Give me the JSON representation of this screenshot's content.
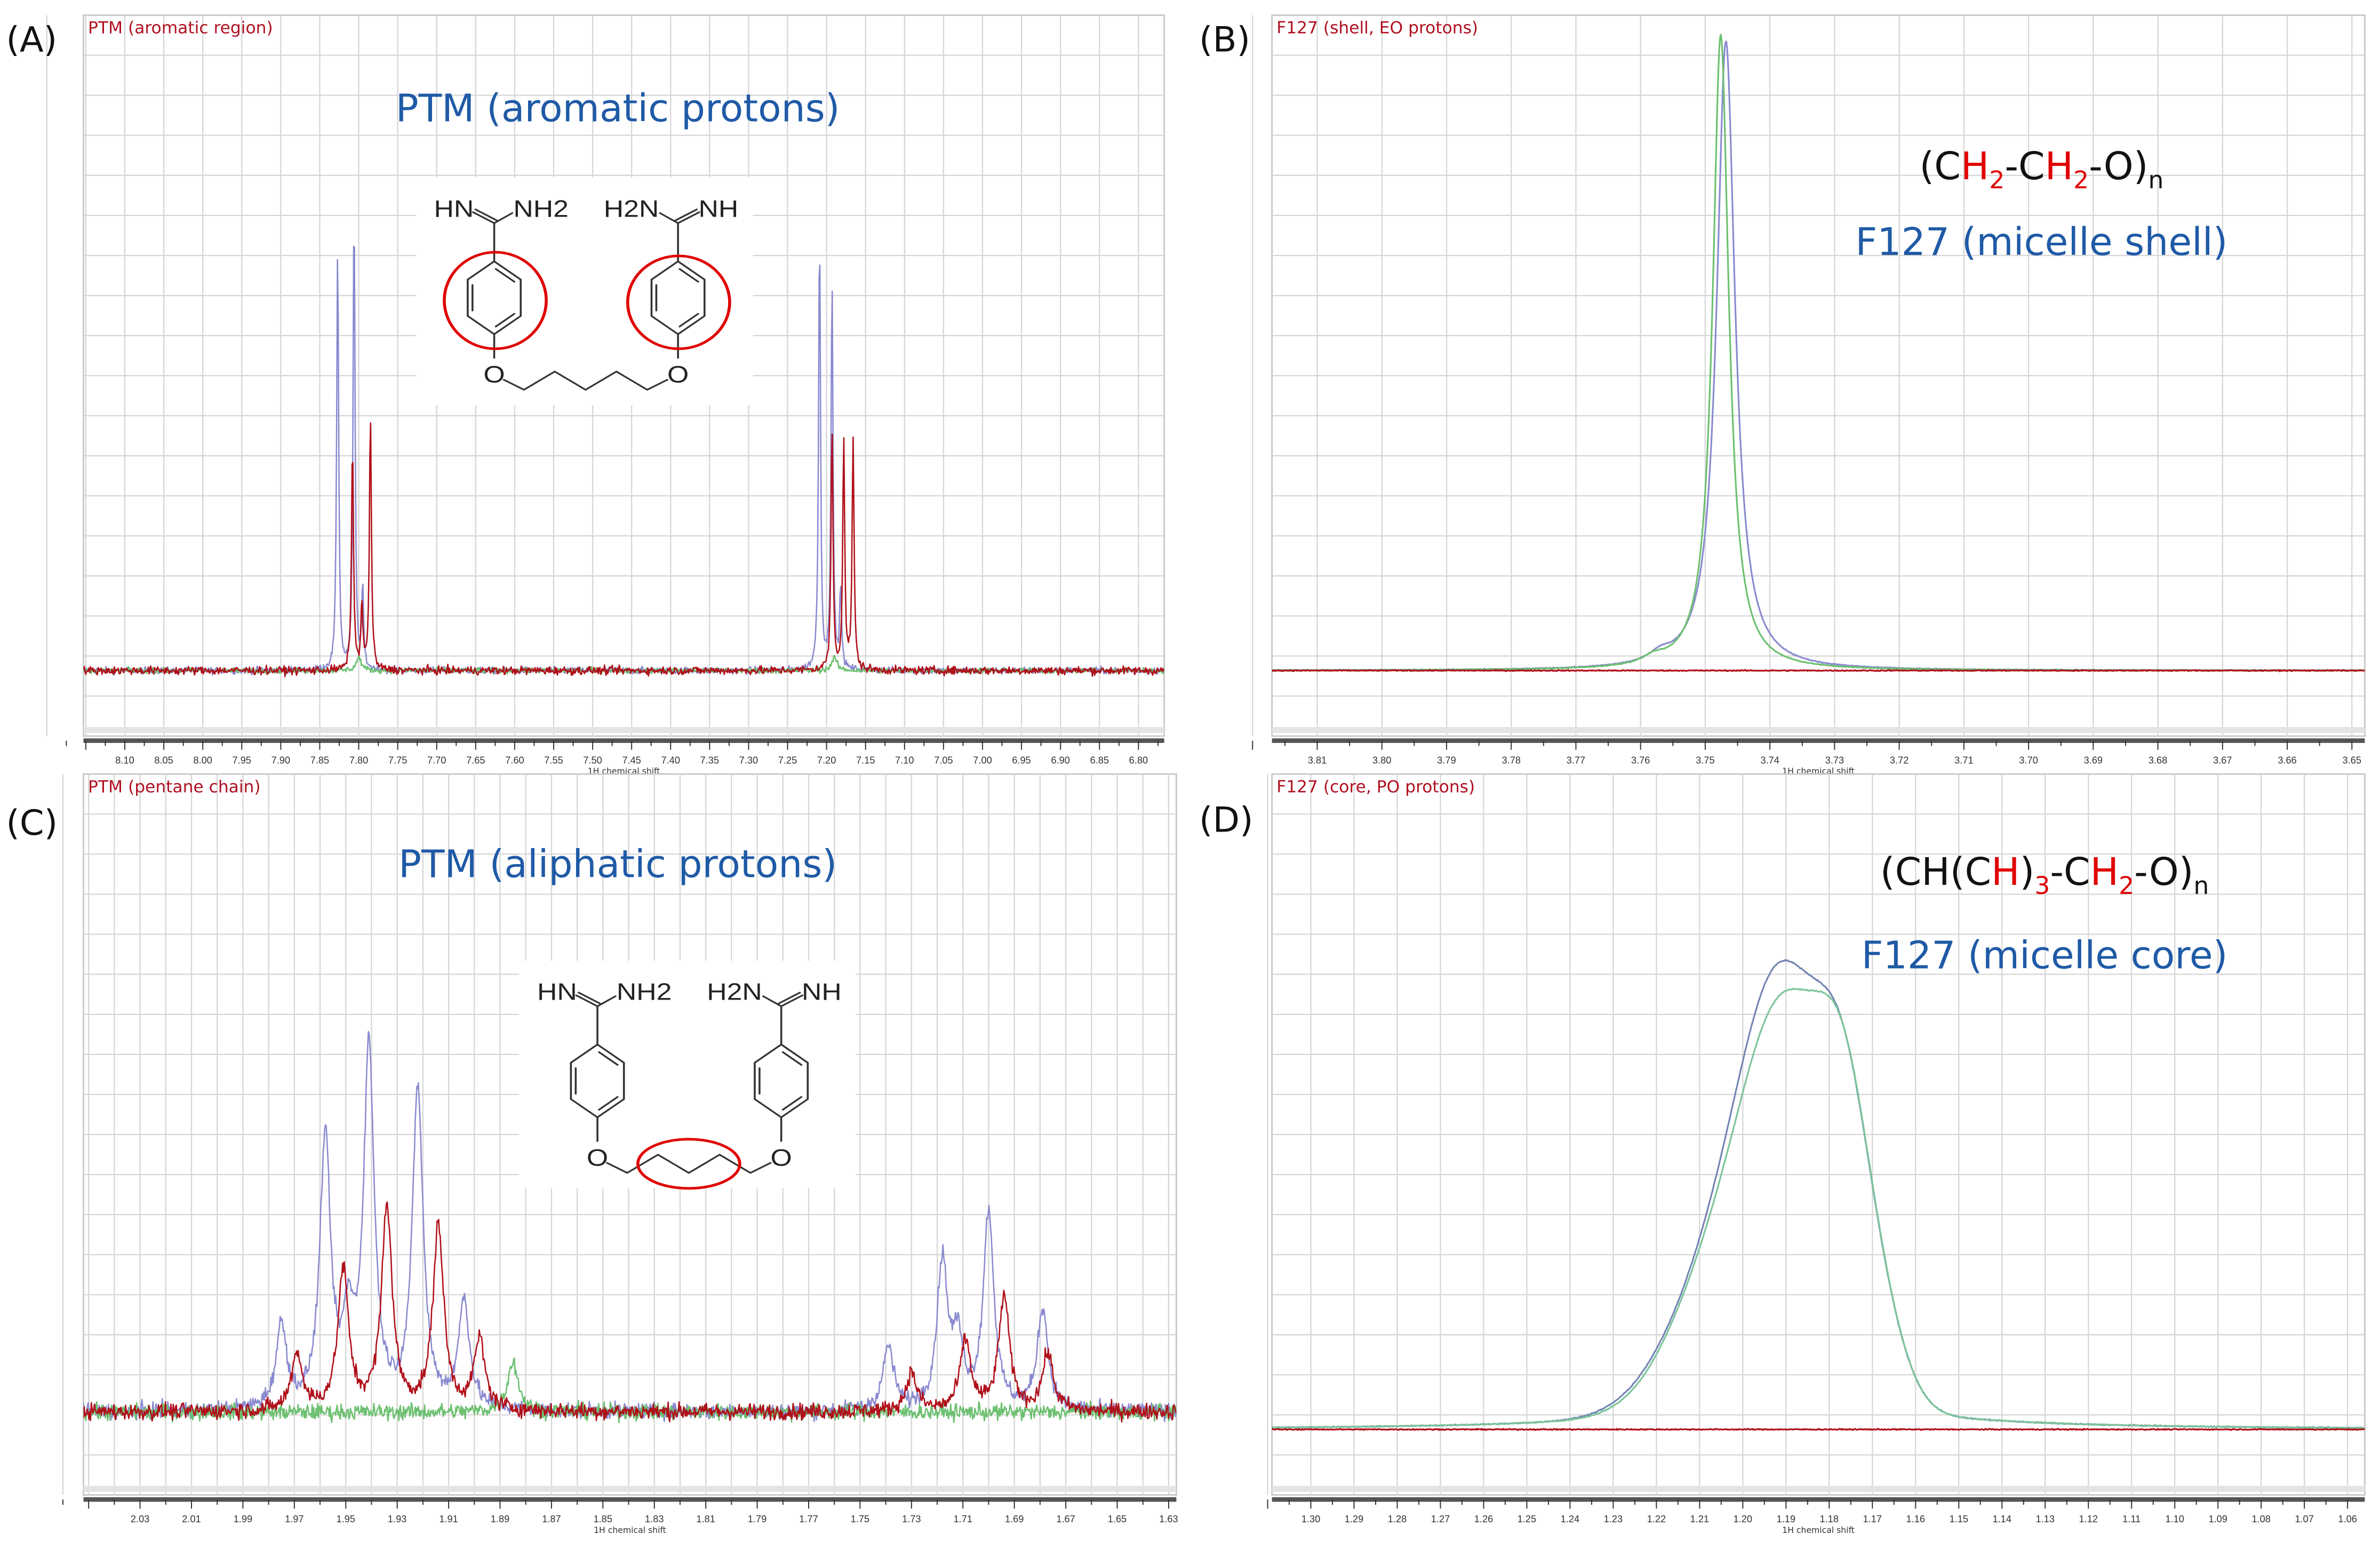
{
  "panels": [
    {
      "label": "(A)",
      "title": "PTM (aromatic region)",
      "annotation": "PTM (aromatic protons)",
      "molecule": {
        "left_imine": "HN",
        "left_amine": "NH2",
        "right_amine": "H2N",
        "right_imine": "NH",
        "oxygen": "O",
        "highlight": "aromatic rings"
      }
    },
    {
      "label": "(B)",
      "title": "F127 (shell, EO protons)",
      "formula": [
        {
          "t": "(C"
        },
        {
          "t": "H",
          "red": true
        },
        {
          "t": "2",
          "red": true,
          "sub": true
        },
        {
          "t": "-C"
        },
        {
          "t": "H",
          "red": true
        },
        {
          "t": "2",
          "red": true,
          "sub": true
        },
        {
          "t": "-O)"
        },
        {
          "t": "n",
          "sub": true
        }
      ],
      "annotation": "F127 (micelle shell)"
    },
    {
      "label": "(C)",
      "title": "PTM (pentane chain)",
      "annotation": "PTM (aliphatic protons)",
      "molecule": {
        "left_imine": "HN",
        "left_amine": "NH2",
        "right_amine": "H2N",
        "right_imine": "NH",
        "oxygen": "O",
        "highlight": "pentane chain"
      }
    },
    {
      "label": "(D)",
      "title": "F127 (core, PO protons)",
      "formula": [
        {
          "t": "(CH(C"
        },
        {
          "t": "H",
          "red": true
        },
        {
          "t": ")"
        },
        {
          "t": "3",
          "red": true,
          "sub": true
        },
        {
          "t": "-C"
        },
        {
          "t": "H",
          "red": true
        },
        {
          "t": "2",
          "red": true,
          "sub": true
        },
        {
          "t": "-O)"
        },
        {
          "t": "n",
          "sub": true
        }
      ],
      "annotation": "F127 (micelle core)"
    }
  ],
  "colors": {
    "blue_trace": "#8a8ad0",
    "red_trace": "#b0101a",
    "green_trace": "#6cc070",
    "title_red": "#b01020",
    "annotation_blue": "#1f5aa6",
    "highlight_red": "#e00000",
    "grid": "#d6d6d6"
  },
  "chart_data": [
    {
      "type": "line",
      "xlabel": "1H chemical shift",
      "x_reversed": true,
      "xlim": [
        8.153,
        6.767
      ],
      "ylim": [
        -0.1,
        1
      ],
      "y_units": "arbitrary intensity (no y-axis labels shown)",
      "grid": true,
      "xticks": [
        "8.10",
        "8.05",
        "8.00",
        "7.95",
        "7.90",
        "7.85",
        "7.80",
        "7.75",
        "7.70",
        "7.65",
        "7.60",
        "7.55",
        "7.50",
        "7.45",
        "7.40",
        "7.35",
        "7.30",
        "7.25",
        "7.20",
        "7.15",
        "7.10",
        "7.05",
        "7.00",
        "6.95",
        "6.90",
        "6.85",
        "6.80"
      ],
      "series": [
        {
          "color": "#8a8ad0",
          "noise": 0.005,
          "peaks": [
            {
              "ppm": 7.827,
              "intensity": 0.65,
              "width": 0.0015,
              "shape": "lorentzian"
            },
            {
              "ppm": 7.806,
              "intensity": 0.71,
              "width": 0.0015,
              "shape": "lorentzian"
            },
            {
              "ppm": 7.795,
              "intensity": 0.12,
              "width": 0.0015,
              "shape": "lorentzian"
            },
            {
              "ppm": 7.209,
              "intensity": 0.67,
              "width": 0.0015,
              "shape": "lorentzian"
            },
            {
              "ppm": 7.193,
              "intensity": 0.6,
              "width": 0.0015,
              "shape": "lorentzian"
            },
            {
              "ppm": 7.182,
              "intensity": 0.12,
              "width": 0.0015,
              "shape": "lorentzian"
            }
          ]
        },
        {
          "color": "#6cc070",
          "noise": 0.004,
          "peaks": [
            {
              "ppm": 7.8,
              "intensity": 0.02,
              "width": 0.004,
              "shape": "lorentzian"
            },
            {
              "ppm": 7.19,
              "intensity": 0.02,
              "width": 0.004,
              "shape": "lorentzian"
            }
          ]
        },
        {
          "color": "#b0101a",
          "noise": 0.006,
          "peaks": [
            {
              "ppm": 7.808,
              "intensity": 0.35,
              "width": 0.0015,
              "shape": "lorentzian"
            },
            {
              "ppm": 7.785,
              "intensity": 0.39,
              "width": 0.0015,
              "shape": "lorentzian"
            },
            {
              "ppm": 7.796,
              "intensity": 0.1,
              "width": 0.0015,
              "shape": "lorentzian"
            },
            {
              "ppm": 7.193,
              "intensity": 0.37,
              "width": 0.0015,
              "shape": "lorentzian"
            },
            {
              "ppm": 7.178,
              "intensity": 0.35,
              "width": 0.0015,
              "shape": "lorentzian"
            },
            {
              "ppm": 7.166,
              "intensity": 0.35,
              "width": 0.0015,
              "shape": "lorentzian"
            }
          ]
        }
      ]
    },
    {
      "type": "line",
      "xlabel": "1H chemical shift",
      "x_reversed": true,
      "xlim": [
        3.817,
        3.648
      ],
      "ylim": [
        -0.1,
        1
      ],
      "y_units": "arbitrary intensity (no y-axis labels shown)",
      "grid": true,
      "xticks": [
        "3.81",
        "3.80",
        "3.79",
        "3.78",
        "3.77",
        "3.76",
        "3.75",
        "3.74",
        "3.73",
        "3.72",
        "3.71",
        "3.70",
        "3.69",
        "3.68",
        "3.67",
        "3.66",
        "3.65"
      ],
      "series": [
        {
          "color": "#8a8ad0",
          "noise": 0.0006,
          "peaks": [
            {
              "ppm": 3.7468,
              "intensity": 0.96,
              "width": 0.0017,
              "shape": "lorentzian"
            },
            {
              "ppm": 3.757,
              "intensity": 0.012,
              "width": 0.002,
              "shape": "lorentzian"
            }
          ]
        },
        {
          "color": "#6cc070",
          "noise": 0.0006,
          "peaks": [
            {
              "ppm": 3.7476,
              "intensity": 0.97,
              "width": 0.0015,
              "shape": "lorentzian"
            },
            {
              "ppm": 3.758,
              "intensity": 0.01,
              "width": 0.002,
              "shape": "lorentzian"
            }
          ]
        },
        {
          "color": "#b0101a",
          "noise": 0.0008,
          "peaks": []
        }
      ]
    },
    {
      "type": "line",
      "xlabel": "1H chemical shift",
      "x_reversed": true,
      "xlim": [
        2.052,
        1.627
      ],
      "ylim": [
        -0.13,
        1
      ],
      "y_units": "arbitrary intensity (no y-axis labels shown)",
      "grid": true,
      "xticks": [
        "2.03",
        "2.01",
        "1.99",
        "1.97",
        "1.95",
        "1.93",
        "1.91",
        "1.89",
        "1.87",
        "1.85",
        "1.83",
        "1.81",
        "1.79",
        "1.77",
        "1.75",
        "1.73",
        "1.71",
        "1.69",
        "1.67",
        "1.65",
        "1.63"
      ],
      "series": [
        {
          "color": "#8a8ad0",
          "noise": 0.012,
          "peaks": [
            {
              "ppm": 1.975,
              "intensity": 0.13,
              "width": 0.0025,
              "shape": "lorentzian"
            },
            {
              "ppm": 1.958,
              "intensity": 0.42,
              "width": 0.0025,
              "shape": "lorentzian"
            },
            {
              "ppm": 1.949,
              "intensity": 0.12,
              "width": 0.0025,
              "shape": "lorentzian"
            },
            {
              "ppm": 1.941,
              "intensity": 0.56,
              "width": 0.0025,
              "shape": "lorentzian"
            },
            {
              "ppm": 1.922,
              "intensity": 0.5,
              "width": 0.0025,
              "shape": "lorentzian"
            },
            {
              "ppm": 1.904,
              "intensity": 0.17,
              "width": 0.0025,
              "shape": "lorentzian"
            },
            {
              "ppm": 1.739,
              "intensity": 0.1,
              "width": 0.0025,
              "shape": "lorentzian"
            },
            {
              "ppm": 1.718,
              "intensity": 0.23,
              "width": 0.0025,
              "shape": "lorentzian"
            },
            {
              "ppm": 1.712,
              "intensity": 0.1,
              "width": 0.0025,
              "shape": "lorentzian"
            },
            {
              "ppm": 1.7,
              "intensity": 0.31,
              "width": 0.0025,
              "shape": "lorentzian"
            },
            {
              "ppm": 1.679,
              "intensity": 0.16,
              "width": 0.0025,
              "shape": "lorentzian"
            }
          ]
        },
        {
          "color": "#6cc070",
          "noise": 0.012,
          "peaks": [
            {
              "ppm": 1.885,
              "intensity": 0.08,
              "width": 0.0025,
              "shape": "lorentzian"
            }
          ]
        },
        {
          "color": "#b0101a",
          "noise": 0.012,
          "peaks": [
            {
              "ppm": 1.969,
              "intensity": 0.09,
              "width": 0.0025,
              "shape": "lorentzian"
            },
            {
              "ppm": 1.951,
              "intensity": 0.22,
              "width": 0.0025,
              "shape": "lorentzian"
            },
            {
              "ppm": 1.934,
              "intensity": 0.32,
              "width": 0.0025,
              "shape": "lorentzian"
            },
            {
              "ppm": 1.914,
              "intensity": 0.29,
              "width": 0.0025,
              "shape": "lorentzian"
            },
            {
              "ppm": 1.898,
              "intensity": 0.11,
              "width": 0.0025,
              "shape": "lorentzian"
            },
            {
              "ppm": 1.73,
              "intensity": 0.06,
              "width": 0.0025,
              "shape": "lorentzian"
            },
            {
              "ppm": 1.709,
              "intensity": 0.11,
              "width": 0.0025,
              "shape": "lorentzian"
            },
            {
              "ppm": 1.694,
              "intensity": 0.18,
              "width": 0.0025,
              "shape": "lorentzian"
            },
            {
              "ppm": 1.677,
              "intensity": 0.09,
              "width": 0.0025,
              "shape": "lorentzian"
            }
          ]
        }
      ]
    },
    {
      "type": "line",
      "xlabel": "1H chemical shift",
      "x_reversed": true,
      "xlim": [
        1.309,
        1.056
      ],
      "ylim": [
        -0.1,
        1
      ],
      "y_units": "arbitrary intensity (no y-axis labels shown)",
      "grid": true,
      "xticks": [
        "1.30",
        "1.29",
        "1.28",
        "1.27",
        "1.26",
        "1.25",
        "1.24",
        "1.23",
        "1.22",
        "1.21",
        "1.20",
        "1.19",
        "1.18",
        "1.17",
        "1.16",
        "1.15",
        "1.14",
        "1.13",
        "1.12",
        "1.11",
        "1.10",
        "1.09",
        "1.08",
        "1.07",
        "1.06"
      ],
      "series": [
        {
          "color": "#7484b4",
          "noise": 0.0008,
          "peaks": [
            {
              "ppm": 1.19,
              "intensity": 0.55,
              "width": 0.01,
              "shape": "gaussian"
            },
            {
              "ppm": 1.1765,
              "intensity": 0.3,
              "width": 0.006,
              "shape": "gaussian"
            },
            {
              "ppm": 1.205,
              "intensity": 0.2,
              "width": 0.012,
              "shape": "gaussian"
            },
            {
              "ppm": 1.168,
              "intensity": 0.1,
              "width": 0.006,
              "shape": "gaussian"
            },
            {
              "ppm": 1.19,
              "intensity": 0.05,
              "width": 0.03,
              "shape": "lorentzian"
            }
          ]
        },
        {
          "color": "#7cc49a",
          "noise": 0.0008,
          "peaks": [
            {
              "ppm": 1.1895,
              "intensity": 0.53,
              "width": 0.01,
              "shape": "gaussian"
            },
            {
              "ppm": 1.1765,
              "intensity": 0.3,
              "width": 0.006,
              "shape": "gaussian"
            },
            {
              "ppm": 1.206,
              "intensity": 0.19,
              "width": 0.011,
              "shape": "gaussian"
            },
            {
              "ppm": 1.168,
              "intensity": 0.1,
              "width": 0.006,
              "shape": "gaussian"
            },
            {
              "ppm": 1.19,
              "intensity": 0.05,
              "width": 0.03,
              "shape": "lorentzian"
            }
          ]
        },
        {
          "color": "#b0101a",
          "noise": 0.0008,
          "peaks": []
        }
      ]
    }
  ]
}
